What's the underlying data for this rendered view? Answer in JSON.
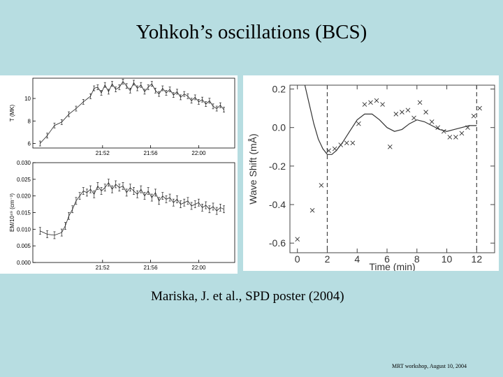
{
  "slide": {
    "title": "Yohkoh’s oscillations (BCS)",
    "caption": "Mariska, J. et al.,  SPD poster (2004)",
    "footer": "MRT workshop, August 10,  2004"
  },
  "colors": {
    "background": "#b7dde1",
    "panel": "#ffffff",
    "ink": "#000000"
  },
  "chart_data": [
    {
      "type": "line",
      "ylabel": "T (MK)",
      "xticks": [
        "21:52",
        "21:56",
        "22:00"
      ],
      "xlim": [
        21.77,
        22.05
      ],
      "yticks": [
        "6",
        "8",
        "10"
      ],
      "ylim": [
        5.6,
        11.8
      ],
      "series": [
        {
          "x": [
            21.78,
            21.79,
            21.8,
            21.81,
            21.82,
            21.83,
            21.84,
            21.85,
            21.855,
            21.86,
            21.865,
            21.87,
            21.875,
            21.88,
            21.885,
            21.89,
            21.895,
            21.9,
            21.905,
            21.91,
            21.915,
            21.92,
            21.925,
            21.93,
            21.935,
            21.94,
            21.945,
            21.95,
            21.955,
            21.96,
            21.965,
            21.97,
            21.975,
            21.98,
            21.985,
            21.99,
            21.995,
            22.0,
            22.005,
            22.01,
            22.015,
            22.02,
            22.025,
            22.03,
            22.035
          ],
          "y": [
            6.0,
            6.7,
            7.6,
            7.9,
            8.6,
            9.1,
            9.7,
            10.2,
            10.9,
            11.0,
            10.5,
            11.2,
            10.6,
            11.3,
            10.8,
            11.0,
            11.5,
            11.1,
            10.7,
            11.4,
            10.9,
            11.2,
            10.6,
            11.0,
            11.3,
            10.7,
            10.4,
            10.9,
            10.5,
            10.8,
            10.3,
            10.6,
            10.1,
            10.4,
            10.2,
            9.8,
            10.1,
            9.7,
            9.9,
            9.5,
            9.8,
            9.3,
            9.1,
            9.4,
            9.0
          ]
        }
      ]
    },
    {
      "type": "line",
      "ylabel": "EM/10⁴⁹ (cm⁻³)",
      "xticks": [
        "21:52",
        "21:56",
        "22:00"
      ],
      "xlim": [
        21.77,
        22.05
      ],
      "yticks": [
        "0.000",
        "0.005",
        "0.010",
        "0.015",
        "0.020",
        "0.025",
        "0.030"
      ],
      "ylim": [
        0.0,
        0.03
      ],
      "series": [
        {
          "x": [
            21.78,
            21.79,
            21.8,
            21.81,
            21.815,
            21.82,
            21.825,
            21.83,
            21.835,
            21.84,
            21.845,
            21.85,
            21.855,
            21.86,
            21.865,
            21.87,
            21.875,
            21.88,
            21.885,
            21.89,
            21.895,
            21.9,
            21.905,
            21.91,
            21.915,
            21.92,
            21.925,
            21.93,
            21.935,
            21.94,
            21.945,
            21.95,
            21.955,
            21.96,
            21.965,
            21.97,
            21.975,
            21.98,
            21.985,
            21.99,
            21.995,
            22.0,
            22.005,
            22.01,
            22.015,
            22.02,
            22.025,
            22.03,
            22.035
          ],
          "y": [
            0.0095,
            0.0085,
            0.0082,
            0.009,
            0.011,
            0.014,
            0.016,
            0.0185,
            0.02,
            0.0215,
            0.021,
            0.022,
            0.0205,
            0.023,
            0.0215,
            0.0225,
            0.024,
            0.022,
            0.0235,
            0.0225,
            0.023,
            0.021,
            0.0225,
            0.0215,
            0.0205,
            0.022,
            0.02,
            0.0215,
            0.0195,
            0.021,
            0.0185,
            0.02,
            0.019,
            0.0195,
            0.018,
            0.019,
            0.0175,
            0.018,
            0.0185,
            0.017,
            0.0175,
            0.018,
            0.0165,
            0.0172,
            0.016,
            0.0168,
            0.0155,
            0.0165,
            0.016
          ]
        }
      ]
    },
    {
      "type": "scatter",
      "xlabel": "Time (min)",
      "ylabel": "Wave Shift (mÅ)",
      "xlim": [
        -0.5,
        13.2
      ],
      "ylim": [
        -0.65,
        0.22
      ],
      "xticks": [
        0,
        2,
        4,
        6,
        8,
        10,
        12
      ],
      "yticks": [
        "0.2",
        "0.0",
        "-0.2",
        "-0.4",
        "-0.6"
      ],
      "yticks_values": [
        0.2,
        0.0,
        -0.2,
        -0.4,
        -0.6
      ],
      "dashed_lines_x": [
        2,
        12
      ],
      "points": {
        "x": [
          0,
          1,
          1.6,
          2.1,
          2.5,
          2.9,
          3.3,
          3.7,
          4.1,
          4.5,
          4.9,
          5.3,
          5.7,
          6.2,
          6.6,
          7.0,
          7.4,
          7.8,
          8.2,
          8.6,
          9.0,
          9.4,
          9.8,
          10.2,
          10.6,
          11.0,
          11.4,
          11.8,
          12.2
        ],
        "y": [
          -0.58,
          -0.43,
          -0.3,
          -0.12,
          -0.11,
          -0.09,
          -0.08,
          -0.08,
          0.02,
          0.12,
          0.13,
          0.14,
          0.12,
          -0.1,
          0.07,
          0.08,
          0.09,
          0.05,
          0.13,
          0.08,
          0.03,
          0.0,
          -0.02,
          -0.05,
          -0.05,
          -0.03,
          0.0,
          0.06,
          0.1
        ]
      },
      "fit_curve": {
        "x": [
          0.5,
          0.8,
          1.1,
          1.4,
          1.7,
          2.0,
          2.3,
          2.6,
          3.0,
          3.5,
          4.0,
          4.5,
          5.0,
          5.5,
          6.0,
          6.5,
          7.0,
          7.5,
          8.0,
          8.5,
          9.0,
          9.5,
          10.0,
          10.5,
          11.0,
          11.5,
          12.0
        ],
        "y": [
          0.22,
          0.12,
          0.02,
          -0.06,
          -0.11,
          -0.14,
          -0.14,
          -0.12,
          -0.08,
          -0.02,
          0.04,
          0.07,
          0.07,
          0.04,
          0.0,
          -0.02,
          -0.01,
          0.02,
          0.04,
          0.03,
          0.01,
          -0.01,
          -0.02,
          -0.01,
          0.0,
          0.01,
          0.01
        ]
      }
    }
  ]
}
